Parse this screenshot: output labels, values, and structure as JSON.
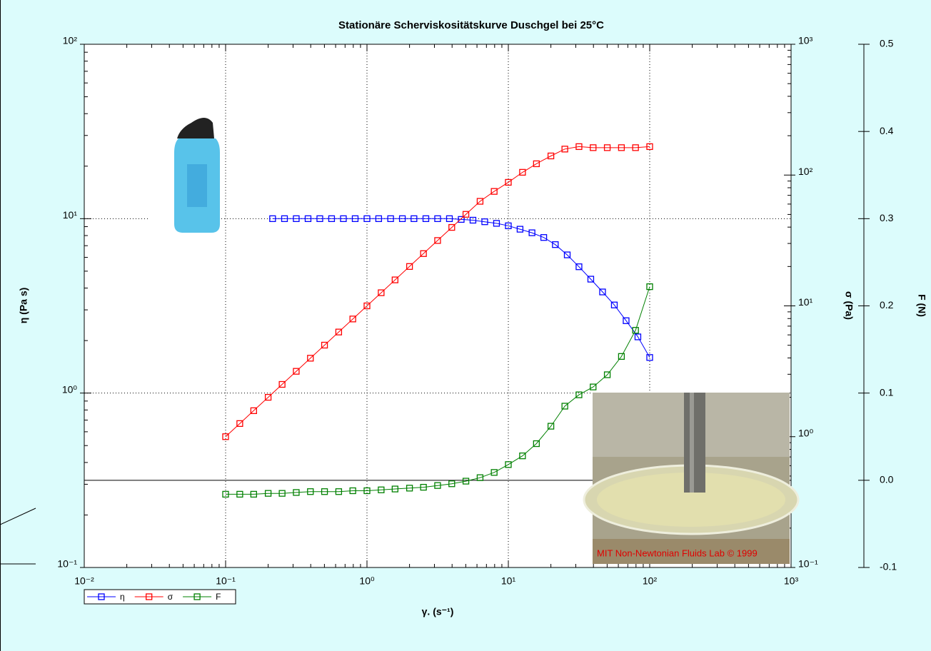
{
  "chart_data": {
    "type": "line",
    "title": "Stationäre Scherviskositätskurve Duschgel bei 25°C",
    "xlabel": "γ. (s⁻¹)",
    "ylabel": "η (Pa s)",
    "y2label": "σ (Pa)",
    "y3label": "F (N)",
    "xscale": "log",
    "yscale": "log",
    "y2scale": "log",
    "y3scale": "linear",
    "xlim": [
      0.01,
      1000
    ],
    "xticks": [
      {
        "value": 0.01,
        "label": "10⁻²"
      },
      {
        "value": 0.1,
        "label": "10⁻¹"
      },
      {
        "value": 1,
        "label": "10⁰"
      },
      {
        "value": 10,
        "label": "10¹"
      },
      {
        "value": 100,
        "label": "10²"
      },
      {
        "value": 1000,
        "label": "10³"
      }
    ],
    "ylim": [
      0.1,
      100
    ],
    "yticks": [
      {
        "value": 0.1,
        "label": "10⁻¹"
      },
      {
        "value": 1,
        "label": "10⁰"
      },
      {
        "value": 10,
        "label": "10¹"
      },
      {
        "value": 100,
        "label": "10²"
      }
    ],
    "y2lim": [
      0.1,
      1000
    ],
    "y2ticks": [
      {
        "value": 0.1,
        "label": "10⁻¹"
      },
      {
        "value": 1,
        "label": "10⁰"
      },
      {
        "value": 10,
        "label": "10¹"
      },
      {
        "value": 100,
        "label": "10²"
      },
      {
        "value": 1000,
        "label": "10³"
      }
    ],
    "y3lim": [
      -0.1,
      0.5
    ],
    "y3ticks": [
      -0.1,
      {
        "value": 0,
        "label": "0.0"
      },
      0.1,
      0.2,
      0.3,
      0.4,
      0.5
    ],
    "grid": true,
    "legend": "bottom-left",
    "annotation": "MIT Non-Newtonian Fluids Lab © 1999",
    "series": [
      {
        "name": "η",
        "color": "#0000ff",
        "axis": "y",
        "x": [
          0.215,
          0.261,
          0.316,
          0.383,
          0.464,
          0.562,
          0.681,
          0.825,
          1,
          1.21,
          1.47,
          1.78,
          2.15,
          2.61,
          3.16,
          3.83,
          4.64,
          5.62,
          6.81,
          8.25,
          10,
          12.1,
          14.7,
          17.8,
          21.5,
          26.1,
          31.6,
          38.3,
          46.4,
          56.2,
          68.1,
          82.5,
          100
        ],
        "values": [
          10,
          10,
          10,
          10,
          10,
          10,
          10,
          10,
          10,
          10,
          10,
          10,
          10,
          10,
          10,
          10,
          9.9,
          9.8,
          9.6,
          9.4,
          9.1,
          8.7,
          8.3,
          7.8,
          7.1,
          6.2,
          5.3,
          4.5,
          3.8,
          3.2,
          2.6,
          2.1,
          1.6
        ]
      },
      {
        "name": "σ",
        "color": "#ff0000",
        "axis": "y2",
        "x": [
          0.1,
          0.126,
          0.158,
          0.2,
          0.251,
          0.316,
          0.398,
          0.501,
          0.631,
          0.794,
          1,
          1.26,
          1.58,
          2,
          2.51,
          3.16,
          3.98,
          5.01,
          6.31,
          7.94,
          10,
          12.6,
          15.8,
          20,
          25.1,
          31.6,
          39.8,
          50.1,
          63.1,
          79.4,
          100
        ],
        "values": [
          1,
          1.26,
          1.58,
          2,
          2.51,
          3.16,
          3.98,
          5.01,
          6.31,
          7.94,
          10,
          12.6,
          15.8,
          20,
          25.1,
          31.6,
          39.8,
          50.1,
          63,
          75,
          88,
          105,
          122,
          140,
          158,
          165,
          162,
          162,
          162,
          162,
          165
        ]
      },
      {
        "name": "F",
        "color": "#008000",
        "axis": "y3",
        "x": [
          0.1,
          0.126,
          0.158,
          0.2,
          0.251,
          0.316,
          0.398,
          0.501,
          0.631,
          0.794,
          1,
          1.26,
          1.58,
          2,
          2.51,
          3.16,
          3.98,
          5.01,
          6.31,
          7.94,
          10,
          12.6,
          15.8,
          20,
          25.1,
          31.6,
          39.8,
          50.1,
          63.1,
          79.4,
          100
        ],
        "values": [
          -0.016,
          -0.016,
          -0.016,
          -0.015,
          -0.015,
          -0.014,
          -0.013,
          -0.013,
          -0.013,
          -0.012,
          -0.012,
          -0.011,
          -0.01,
          -0.009,
          -0.008,
          -0.006,
          -0.004,
          -0.001,
          0.003,
          0.009,
          0.018,
          0.028,
          0.042,
          0.062,
          0.085,
          0.098,
          0.107,
          0.121,
          0.142,
          0.172,
          0.222
        ]
      }
    ]
  }
}
